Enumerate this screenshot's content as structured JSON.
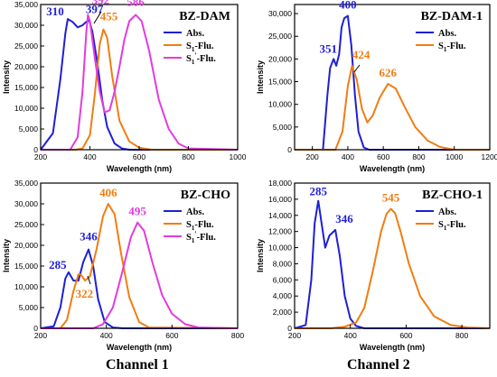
{
  "colors": {
    "abs": "#1f1fd6",
    "flu": "#f07d12",
    "flu2": "#e23be0"
  },
  "footer": {
    "left": "Channel 1",
    "right": "Channel 2"
  },
  "chart_data": [
    {
      "type": "line",
      "title": "BZ-DAM",
      "xlabel": "Wavelength (nm)",
      "ylabel": "Intensity",
      "xlim": [
        200,
        1000
      ],
      "ylim": [
        0,
        35000
      ],
      "xticks": [
        200,
        400,
        600,
        800,
        1000
      ],
      "xtick_labels": [
        "200",
        "400",
        "600",
        "800",
        "1000"
      ],
      "yticks": [
        0,
        5000,
        10000,
        15000,
        20000,
        25000,
        30000,
        35000
      ],
      "ytick_labels": [
        "0",
        "5,000",
        "10,000",
        "15,000",
        "20,000",
        "25,000",
        "30,000",
        "35,000"
      ],
      "series": [
        {
          "name": "Abs.",
          "name_sub": "",
          "name_sup": "",
          "name_rest": "",
          "color": "#1f1fd6",
          "x": [
            200,
            250,
            280,
            300,
            310,
            330,
            350,
            370,
            385,
            397,
            410,
            430,
            450,
            470,
            500,
            530,
            560,
            600,
            1000
          ],
          "y": [
            0,
            4000,
            17000,
            28000,
            31500,
            30800,
            29500,
            30000,
            30800,
            31200,
            28500,
            21000,
            12000,
            5500,
            1500,
            300,
            0,
            0,
            0
          ]
        },
        {
          "name": "S",
          "name_sub": "1",
          "name_sup": "",
          "name_rest": "-Flu.",
          "color": "#f07d12",
          "x": [
            200,
            340,
            370,
            400,
            420,
            440,
            455,
            470,
            490,
            520,
            560,
            600,
            650,
            1000
          ],
          "y": [
            0,
            0,
            300,
            3500,
            13500,
            25500,
            29000,
            27000,
            18000,
            7000,
            2000,
            500,
            0,
            0
          ]
        },
        {
          "name": "S",
          "name_sub": "1",
          "name_sup": "'",
          "name_rest": "-Flu.",
          "color": "#e23be0",
          "x": [
            200,
            320,
            350,
            370,
            385,
            392,
            400,
            420,
            440,
            460,
            480,
            500,
            520,
            540,
            560,
            586,
            610,
            640,
            680,
            720,
            760,
            800,
            1000
          ],
          "y": [
            0,
            0,
            3000,
            14000,
            28000,
            32500,
            31000,
            22000,
            14000,
            9000,
            9500,
            14000,
            20000,
            26500,
            31000,
            32500,
            31000,
            24000,
            12000,
            5000,
            1500,
            300,
            0
          ]
        }
      ],
      "annotations": [
        {
          "text": "310",
          "color": "#1f1fd6",
          "x": 310,
          "y": 31500
        },
        {
          "text": "397",
          "color": "#1f1fd6",
          "x": 397,
          "y": 31200
        },
        {
          "text": "392",
          "color": "#e23be0",
          "x": 392,
          "y": 32500
        },
        {
          "text": "455",
          "color": "#f07d12",
          "x": 455,
          "y": 29000
        },
        {
          "text": "586",
          "color": "#e23be0",
          "x": 586,
          "y": 32500
        }
      ],
      "legend": "top-right"
    },
    {
      "type": "line",
      "title": "BZ-DAM-1",
      "xlabel": "Wavelength (nm)",
      "ylabel": "Intensity",
      "xlim": [
        100,
        1200
      ],
      "ylim": [
        0,
        32000
      ],
      "xticks": [
        200,
        400,
        600,
        800,
        1000,
        1200
      ],
      "xtick_labels": [
        "200",
        "400",
        "600",
        "800",
        "1000",
        "1200"
      ],
      "yticks": [
        0,
        5000,
        10000,
        15000,
        20000,
        25000,
        30000
      ],
      "ytick_labels": [
        "0",
        "5,000",
        "10,000",
        "15,000",
        "20,000",
        "25,000",
        "30,000"
      ],
      "series": [
        {
          "name": "Abs.",
          "name_sub": "",
          "name_sup": "",
          "name_rest": "",
          "color": "#1f1fd6",
          "x": [
            100,
            260,
            285,
            300,
            320,
            335,
            351,
            365,
            380,
            400,
            420,
            440,
            460,
            490,
            520,
            1200
          ],
          "y": [
            0,
            0,
            12000,
            18000,
            20000,
            18500,
            21000,
            27000,
            29000,
            29500,
            23000,
            12000,
            4000,
            500,
            0,
            0
          ]
        },
        {
          "name": "S",
          "name_sub": "1",
          "name_sup": "",
          "name_rest": "-Flu.",
          "color": "#f07d12",
          "x": [
            100,
            330,
            370,
            400,
            424,
            450,
            480,
            510,
            540,
            580,
            626,
            670,
            720,
            780,
            850,
            920,
            1000,
            1200
          ],
          "y": [
            0,
            0,
            4000,
            14000,
            18500,
            15500,
            9000,
            6000,
            7500,
            11500,
            14500,
            13500,
            9500,
            5000,
            2000,
            600,
            0,
            0
          ]
        }
      ],
      "annotations": [
        {
          "text": "400",
          "color": "#1f1fd6",
          "x": 400,
          "y": 29500
        },
        {
          "text": "351",
          "color": "#1f1fd6",
          "x": 351,
          "y": 21000
        },
        {
          "text": "424",
          "color": "#f07d12",
          "x": 424,
          "y": 18500
        },
        {
          "text": "626",
          "color": "#f07d12",
          "x": 626,
          "y": 14500
        }
      ],
      "legend": "top-right"
    },
    {
      "type": "line",
      "title": "BZ-CHO",
      "xlabel": "Wavelength (nm)",
      "ylabel": "Intensity",
      "xlim": [
        200,
        800
      ],
      "ylim": [
        0,
        35000
      ],
      "xticks": [
        200,
        400,
        600,
        800
      ],
      "xtick_labels": [
        "200",
        "400",
        "600",
        "800"
      ],
      "yticks": [
        0,
        5000,
        10000,
        15000,
        20000,
        25000,
        30000,
        35000
      ],
      "ytick_labels": [
        "0",
        "5,000",
        "10,000",
        "15,000",
        "20,000",
        "25,000",
        "30,000",
        "35,000"
      ],
      "series": [
        {
          "name": "Abs.",
          "name_sub": "",
          "name_sup": "",
          "name_rest": "",
          "color": "#1f1fd6",
          "x": [
            200,
            240,
            260,
            275,
            285,
            300,
            315,
            330,
            346,
            360,
            375,
            395,
            420,
            450,
            800
          ],
          "y": [
            0,
            500,
            5000,
            12000,
            13500,
            11500,
            11500,
            16000,
            19000,
            15000,
            7000,
            1500,
            200,
            0,
            0
          ]
        },
        {
          "name": "S",
          "name_sub": "1",
          "name_sup": "",
          "name_rest": "-Flu.",
          "color": "#f07d12",
          "x": [
            200,
            260,
            280,
            300,
            315,
            322,
            335,
            350,
            370,
            390,
            406,
            425,
            445,
            470,
            500,
            530,
            800
          ],
          "y": [
            0,
            0,
            2000,
            9000,
            13000,
            13000,
            11500,
            12500,
            19000,
            27000,
            30000,
            27500,
            18000,
            7500,
            1500,
            200,
            0
          ]
        },
        {
          "name": "S",
          "name_sub": "1",
          "name_sup": "'",
          "name_rest": "-Flu.",
          "color": "#e23be0",
          "x": [
            200,
            360,
            390,
            420,
            450,
            475,
            495,
            515,
            540,
            570,
            600,
            640,
            680,
            800
          ],
          "y": [
            0,
            0,
            1000,
            5000,
            14000,
            22000,
            25500,
            23500,
            16000,
            8000,
            3500,
            1000,
            200,
            0
          ]
        }
      ],
      "annotations": [
        {
          "text": "406",
          "color": "#f07d12",
          "x": 406,
          "y": 30000
        },
        {
          "text": "495",
          "color": "#e23be0",
          "x": 495,
          "y": 25500
        },
        {
          "text": "346",
          "color": "#1f1fd6",
          "x": 346,
          "y": 19000
        },
        {
          "text": "285",
          "color": "#1f1fd6",
          "x": 285,
          "y": 13500
        },
        {
          "text": "322",
          "color": "#f07d12",
          "x": 322,
          "y": 13000
        }
      ],
      "legend": "top-right"
    },
    {
      "type": "line",
      "title": "BZ-CHO-1",
      "xlabel": "Wavelength (nm)",
      "ylabel": "Intensity",
      "xlim": [
        200,
        900
      ],
      "ylim": [
        0,
        18000
      ],
      "xticks": [
        200,
        400,
        600,
        800
      ],
      "xtick_labels": [
        "200",
        "400",
        "600",
        "800"
      ],
      "yticks": [
        0,
        2000,
        4000,
        6000,
        8000,
        10000,
        12000,
        14000,
        16000,
        18000
      ],
      "ytick_labels": [
        "0",
        "2,000",
        "4,000",
        "6,000",
        "8,000",
        "10,000",
        "12,000",
        "14,000",
        "16,000",
        "18,000"
      ],
      "series": [
        {
          "name": "Abs.",
          "name_sub": "",
          "name_sup": "",
          "name_rest": "",
          "color": "#1f1fd6",
          "x": [
            200,
            240,
            260,
            272,
            285,
            297,
            310,
            325,
            346,
            362,
            380,
            400,
            420,
            450,
            900
          ],
          "y": [
            0,
            400,
            6000,
            13000,
            15800,
            13000,
            10000,
            11500,
            12200,
            9000,
            4000,
            1200,
            300,
            0,
            0
          ]
        },
        {
          "name": "S",
          "name_sub": "1",
          "name_sup": "",
          "name_rest": "-Flu.",
          "color": "#f07d12",
          "x": [
            200,
            330,
            380,
            420,
            450,
            480,
            510,
            530,
            545,
            560,
            580,
            610,
            650,
            700,
            760,
            820,
            900
          ],
          "y": [
            0,
            0,
            200,
            700,
            2500,
            7000,
            12000,
            14200,
            14800,
            14300,
            12000,
            8000,
            4000,
            1500,
            400,
            100,
            0
          ]
        }
      ],
      "annotations": [
        {
          "text": "285",
          "color": "#1f1fd6",
          "x": 285,
          "y": 15800
        },
        {
          "text": "346",
          "color": "#1f1fd6",
          "x": 346,
          "y": 12200
        },
        {
          "text": "545",
          "color": "#f07d12",
          "x": 545,
          "y": 14800
        }
      ],
      "legend": "top-right"
    }
  ]
}
